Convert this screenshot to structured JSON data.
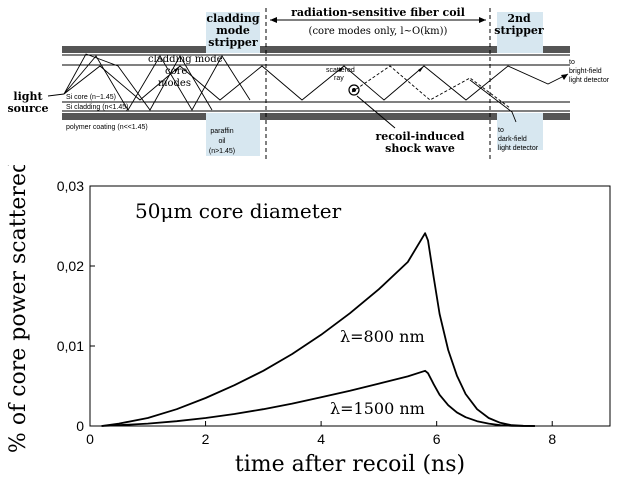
{
  "diagram": {
    "labels": {
      "cladding_stripper": [
        "cladding",
        "mode",
        "stripper"
      ],
      "coil_title": "radiation-sensitive fiber coil",
      "coil_subtitle": "(core modes only, l~O(km))",
      "second_stripper": [
        "2nd",
        "stripper"
      ],
      "cladding_mode": "cladding mode",
      "core_modes": [
        "core",
        "modes"
      ],
      "light_source": [
        "light",
        "source"
      ],
      "si_core": "Si core (n~1.45)",
      "si_cladding": "Si cladding (n<1.45)",
      "polymer": "polymer coating (n<<1.45)",
      "paraffin": [
        "paraffin",
        "oil",
        "(n>1.45)"
      ],
      "scattered_ray": [
        "scattered",
        "ray"
      ],
      "shock_wave": [
        "recoil-induced",
        "shock wave"
      ],
      "bright_field": [
        "to",
        "bright-field",
        "light detector"
      ],
      "dark_field": [
        "to",
        "dark-field",
        "light detector"
      ]
    }
  },
  "chart_data": {
    "type": "line",
    "annotation": "50μm core diameter",
    "xlabel": "time after recoil (ns)",
    "ylabel": "% of core power scattered",
    "xlim": [
      0,
      9
    ],
    "ylim": [
      0,
      0.03
    ],
    "xticks": [
      "0",
      "2",
      "4",
      "6",
      "8"
    ],
    "yticks": [
      "0",
      "0,01",
      "0,02",
      "0,03"
    ],
    "series": [
      {
        "name": "λ=800 nm",
        "x": [
          0.2,
          0.5,
          1.0,
          1.5,
          2.0,
          2.5,
          3.0,
          3.5,
          4.0,
          4.5,
          5.0,
          5.5,
          5.8,
          5.85,
          5.95,
          6.05,
          6.2,
          6.35,
          6.5,
          6.7,
          6.9,
          7.1,
          7.3,
          7.5,
          7.7
        ],
        "y": [
          0.0,
          0.0003,
          0.001,
          0.0021,
          0.0035,
          0.0051,
          0.0069,
          0.009,
          0.0114,
          0.0141,
          0.0171,
          0.0205,
          0.0241,
          0.0232,
          0.0185,
          0.014,
          0.0095,
          0.0063,
          0.004,
          0.0021,
          0.001,
          0.0004,
          0.0001,
          3e-05,
          0.0
        ]
      },
      {
        "name": "λ=1500 nm",
        "x": [
          0.2,
          0.5,
          1.0,
          1.5,
          2.0,
          2.5,
          3.0,
          3.5,
          4.0,
          4.5,
          5.0,
          5.5,
          5.8,
          5.85,
          5.95,
          6.05,
          6.2,
          6.35,
          6.5,
          6.7,
          6.9,
          7.1,
          7.3,
          7.5,
          7.7
        ],
        "y": [
          0.0,
          0.0001,
          0.0003,
          0.0006,
          0.001,
          0.0015,
          0.0021,
          0.0028,
          0.0036,
          0.0044,
          0.0053,
          0.0062,
          0.0069,
          0.0066,
          0.0052,
          0.0039,
          0.0026,
          0.0017,
          0.0011,
          0.0006,
          0.0003,
          0.0001,
          3e-05,
          0.0,
          0.0
        ]
      }
    ],
    "grid": false
  }
}
